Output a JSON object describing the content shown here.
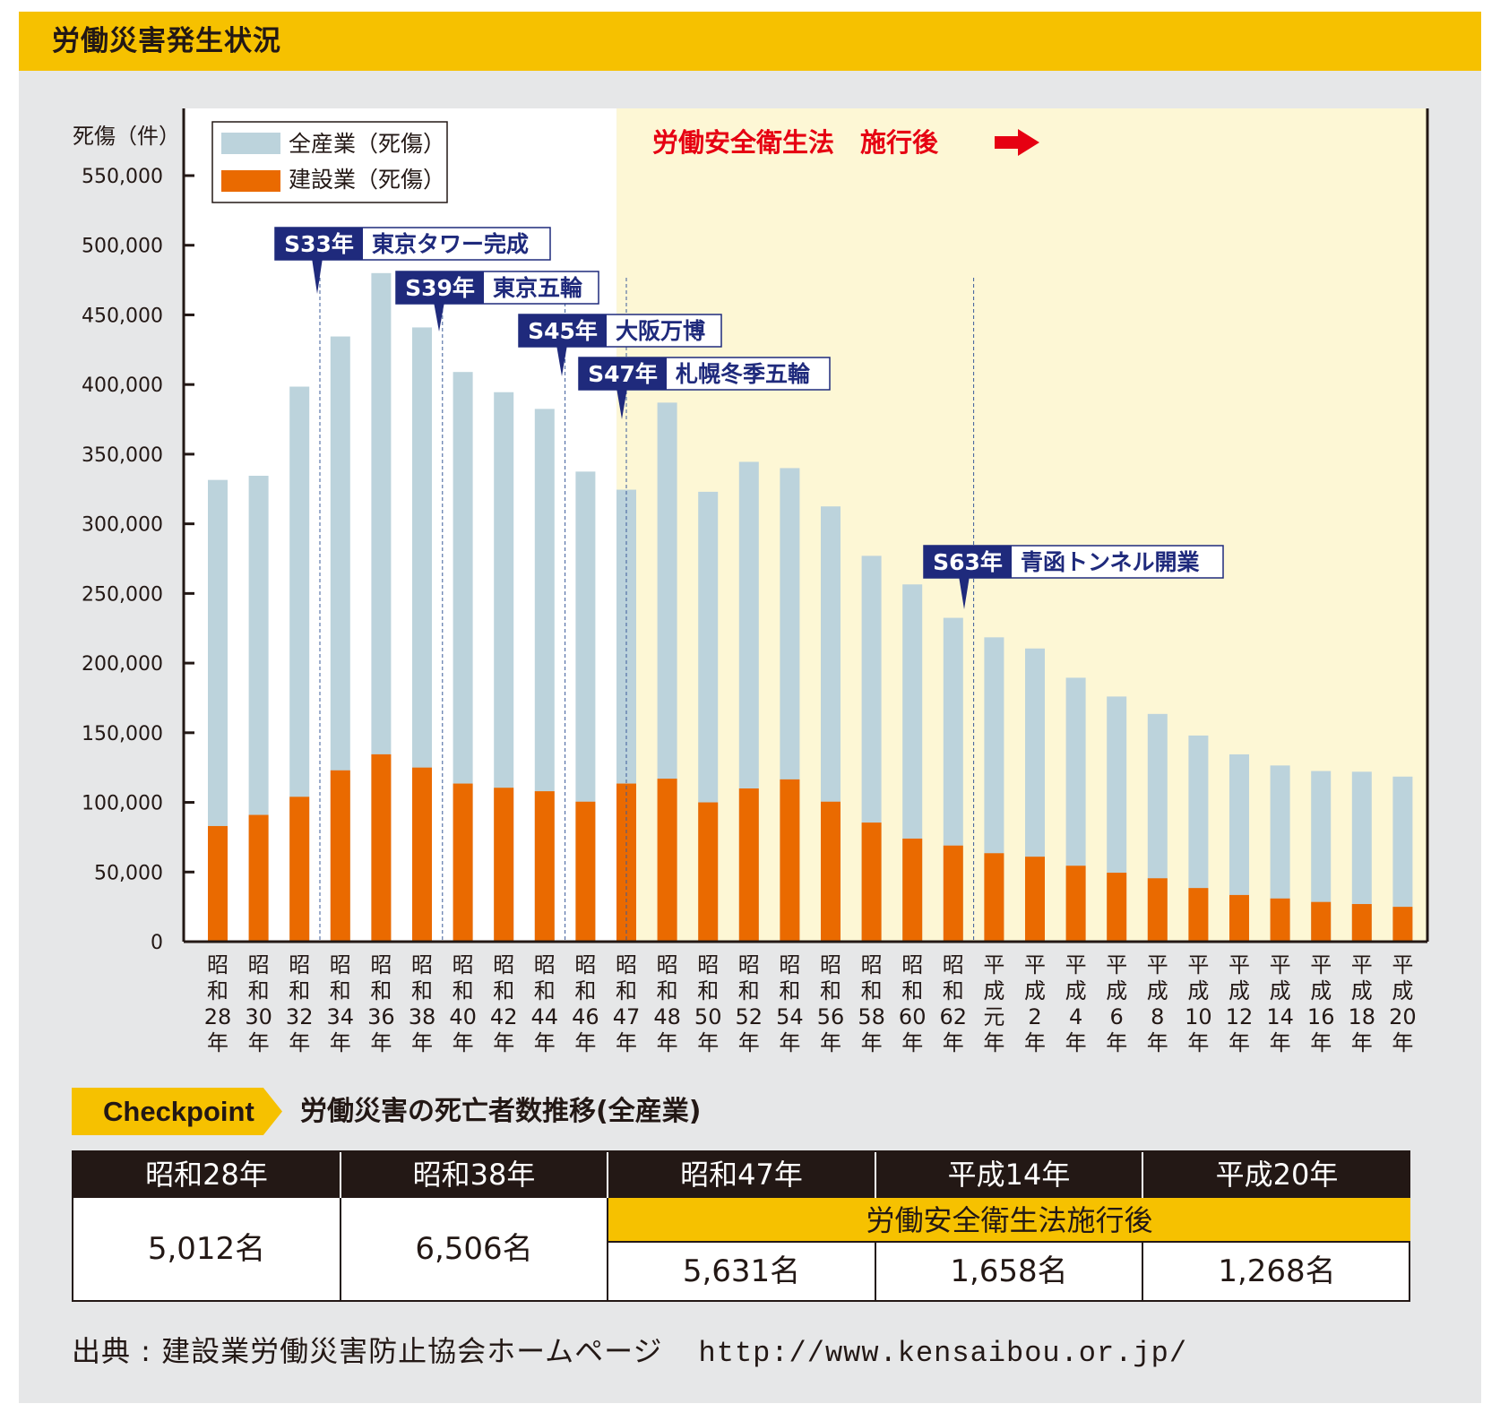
{
  "page": {
    "title": "労働災害発生状況"
  },
  "colors": {
    "header_bg": "#f6c100",
    "panel_bg": "#e6e7e8",
    "post_law_bg": "#fdf7d5",
    "all_industry": "#bcd3dc",
    "construction": "#ea6a00",
    "event_box": "#1f2a7c",
    "law_text": "#e60012",
    "table_header": "#231815"
  },
  "chart_data": {
    "type": "bar",
    "stacked_overlay": true,
    "ylabel": "死傷（件）",
    "ylim": [
      0,
      550000
    ],
    "yticks": [
      0,
      50000,
      100000,
      150000,
      200000,
      250000,
      300000,
      350000,
      400000,
      450000,
      500000,
      550000
    ],
    "ytick_labels": [
      "0",
      "50,000",
      "100,000",
      "150,000",
      "200,000",
      "250,000",
      "300,000",
      "350,000",
      "400,000",
      "450,000",
      "500,000",
      "550,000"
    ],
    "categories": [
      [
        "昭",
        "和",
        "28",
        "年"
      ],
      [
        "昭",
        "和",
        "30",
        "年"
      ],
      [
        "昭",
        "和",
        "32",
        "年"
      ],
      [
        "昭",
        "和",
        "34",
        "年"
      ],
      [
        "昭",
        "和",
        "36",
        "年"
      ],
      [
        "昭",
        "和",
        "38",
        "年"
      ],
      [
        "昭",
        "和",
        "40",
        "年"
      ],
      [
        "昭",
        "和",
        "42",
        "年"
      ],
      [
        "昭",
        "和",
        "44",
        "年"
      ],
      [
        "昭",
        "和",
        "46",
        "年"
      ],
      [
        "昭",
        "和",
        "47",
        "年"
      ],
      [
        "昭",
        "和",
        "48",
        "年"
      ],
      [
        "昭",
        "和",
        "50",
        "年"
      ],
      [
        "昭",
        "和",
        "52",
        "年"
      ],
      [
        "昭",
        "和",
        "54",
        "年"
      ],
      [
        "昭",
        "和",
        "56",
        "年"
      ],
      [
        "昭",
        "和",
        "58",
        "年"
      ],
      [
        "昭",
        "和",
        "60",
        "年"
      ],
      [
        "昭",
        "和",
        "62",
        "年"
      ],
      [
        "平",
        "成",
        "元",
        "年"
      ],
      [
        "平",
        "成",
        "2",
        "年"
      ],
      [
        "平",
        "成",
        "4",
        "年"
      ],
      [
        "平",
        "成",
        "6",
        "年"
      ],
      [
        "平",
        "成",
        "8",
        "年"
      ],
      [
        "平",
        "成",
        "10",
        "年"
      ],
      [
        "平",
        "成",
        "12",
        "年"
      ],
      [
        "平",
        "成",
        "14",
        "年"
      ],
      [
        "平",
        "成",
        "16",
        "年"
      ],
      [
        "平",
        "成",
        "18",
        "年"
      ],
      [
        "平",
        "成",
        "20",
        "年"
      ]
    ],
    "series": [
      {
        "name": "全産業（死傷）",
        "color": "#bcd3dc",
        "values": [
          331500,
          334500,
          398500,
          434500,
          480000,
          441000,
          409000,
          394500,
          382500,
          337500,
          324500,
          387000,
          323000,
          344500,
          340000,
          312500,
          277000,
          256500,
          232500,
          218500,
          210500,
          189500,
          176000,
          163500,
          148000,
          134500,
          126500,
          122500,
          122000,
          118500
        ]
      },
      {
        "name": "建設業（死傷）",
        "color": "#ea6a00",
        "values": [
          83000,
          91000,
          104000,
          123000,
          134500,
          125000,
          113500,
          110500,
          108000,
          100500,
          113500,
          117000,
          100000,
          110000,
          116500,
          100500,
          85500,
          74000,
          69000,
          63500,
          61000,
          54500,
          49500,
          45500,
          38500,
          33500,
          31000,
          28500,
          27000,
          25000
        ]
      }
    ],
    "legend_position": "top-left",
    "law_note": "労働安全衛生法　施行後",
    "law_arrow": "➡",
    "law_start_index": 10,
    "events": [
      {
        "year": "S33年",
        "label": "東京タワー完成",
        "at": 2.5
      },
      {
        "year": "S39年",
        "label": "東京五輪",
        "at": 5.5
      },
      {
        "year": "S45年",
        "label": "大阪万博",
        "at": 8.5
      },
      {
        "year": "S47年",
        "label": "札幌冬季五輪",
        "at": 10
      },
      {
        "year": "S63年",
        "label": "青函トンネル開業",
        "at": 18.5
      }
    ]
  },
  "checkpoint": {
    "tag": "Checkpoint",
    "title": "労働災害の死亡者数推移(全産業)",
    "headers": [
      "昭和28年",
      "昭和38年",
      "昭和47年",
      "平成14年",
      "平成20年"
    ],
    "law_row": "労働安全衛生法施行後",
    "values": [
      "5,012名",
      "6,506名",
      "5,631名",
      "1,658名",
      "1,268名"
    ]
  },
  "source": {
    "label": "出典 : 建設業労働災害防止協会ホームページ",
    "url": "http://www.kensaibou.or.jp/"
  }
}
